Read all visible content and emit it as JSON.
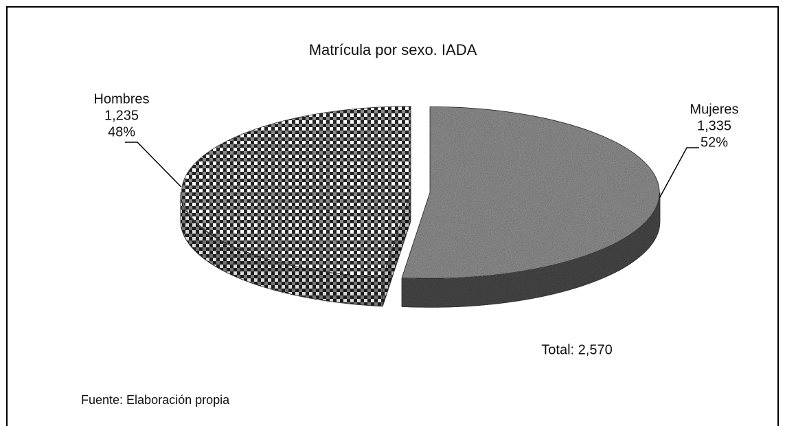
{
  "chart_data": {
    "type": "pie",
    "title": "Matrícula por sexo. IADA",
    "categories": [
      "Hombres",
      "Mujeres"
    ],
    "values": [
      1235,
      1335
    ],
    "value_labels": [
      "1,235",
      "1,335"
    ],
    "percent_labels": [
      "48%",
      "52%"
    ],
    "annotations": [
      "Total: 2,570"
    ],
    "source": "Fuente: Elaboración propia"
  }
}
